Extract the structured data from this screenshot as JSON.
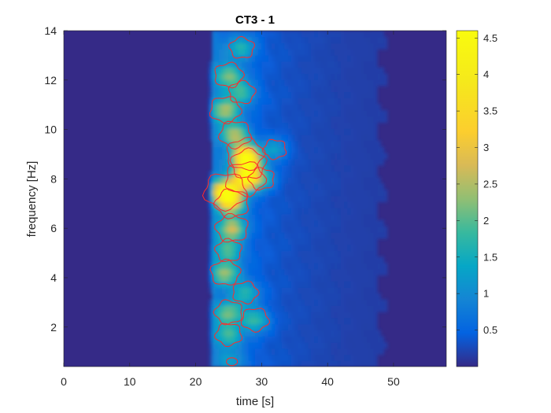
{
  "chart_data": {
    "type": "heatmap",
    "title": "CT3 - 1",
    "xlabel": "time [s]",
    "ylabel": "frequency [Hz]",
    "xlim": [
      0,
      58
    ],
    "ylim": [
      0.4,
      14
    ],
    "x_ticks": [
      0,
      10,
      20,
      30,
      40,
      50
    ],
    "y_ticks": [
      2,
      4,
      6,
      8,
      10,
      12,
      14
    ],
    "colorbar": {
      "colormap": "parula",
      "range": [
        0,
        4.6
      ],
      "ticks": [
        0.5,
        1,
        1.5,
        2,
        2.5,
        3,
        3.5,
        4,
        4.5
      ]
    },
    "contour_level_color": "#ff2a2a",
    "baseline_level": 0.12,
    "activity_onset_s": 22.5,
    "hotspots": [
      {
        "t": 24.5,
        "f": 7.5,
        "value": 4.2
      },
      {
        "t": 27.5,
        "f": 8.0,
        "value": 3.6
      },
      {
        "t": 27.5,
        "f": 9.0,
        "value": 3.2
      },
      {
        "t": 28.0,
        "f": 8.6,
        "value": 2.8
      },
      {
        "t": 25.5,
        "f": 6.0,
        "value": 2.4
      },
      {
        "t": 25.5,
        "f": 7.0,
        "value": 2.6
      },
      {
        "t": 26.0,
        "f": 9.8,
        "value": 2.3
      },
      {
        "t": 24.5,
        "f": 10.8,
        "value": 2.2
      },
      {
        "t": 25.0,
        "f": 12.2,
        "value": 1.9
      },
      {
        "t": 24.5,
        "f": 4.2,
        "value": 2.0
      },
      {
        "t": 25.0,
        "f": 5.1,
        "value": 1.6
      },
      {
        "t": 25.0,
        "f": 2.6,
        "value": 1.8
      },
      {
        "t": 25.0,
        "f": 1.7,
        "value": 1.6
      },
      {
        "t": 29.0,
        "f": 2.3,
        "value": 1.7
      },
      {
        "t": 27.5,
        "f": 3.4,
        "value": 1.5
      },
      {
        "t": 27.0,
        "f": 11.5,
        "value": 1.6
      },
      {
        "t": 27.0,
        "f": 13.3,
        "value": 1.4
      },
      {
        "t": 30.0,
        "f": 8.0,
        "value": 1.5
      },
      {
        "t": 32.0,
        "f": 9.2,
        "value": 1.2
      },
      {
        "t": 25.5,
        "f": 0.6,
        "value": 1.0
      }
    ]
  }
}
